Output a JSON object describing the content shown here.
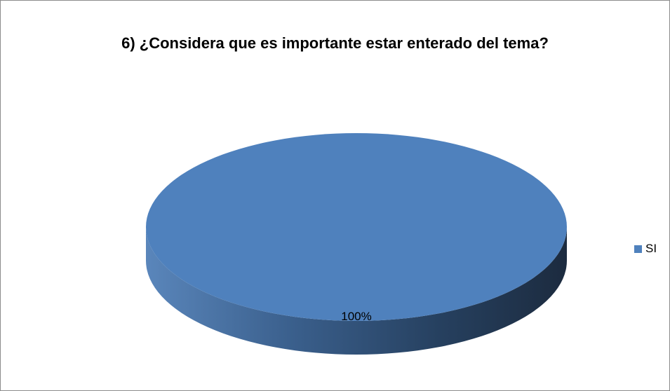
{
  "chart_data": {
    "type": "pie",
    "title": "6) ¿Considera que es importante estar enterado del tema?",
    "categories": [
      "SI"
    ],
    "values": [
      100
    ],
    "data_labels": [
      "100%"
    ],
    "legend": {
      "placement": "right",
      "entries": [
        "SI"
      ]
    },
    "style": "3d",
    "colors": {
      "slice_top": "#4f81bd",
      "slice_side_light": "#4a79b3",
      "slice_side_dark": "#1e2f45",
      "frame_border": "#8c8c8c"
    }
  }
}
